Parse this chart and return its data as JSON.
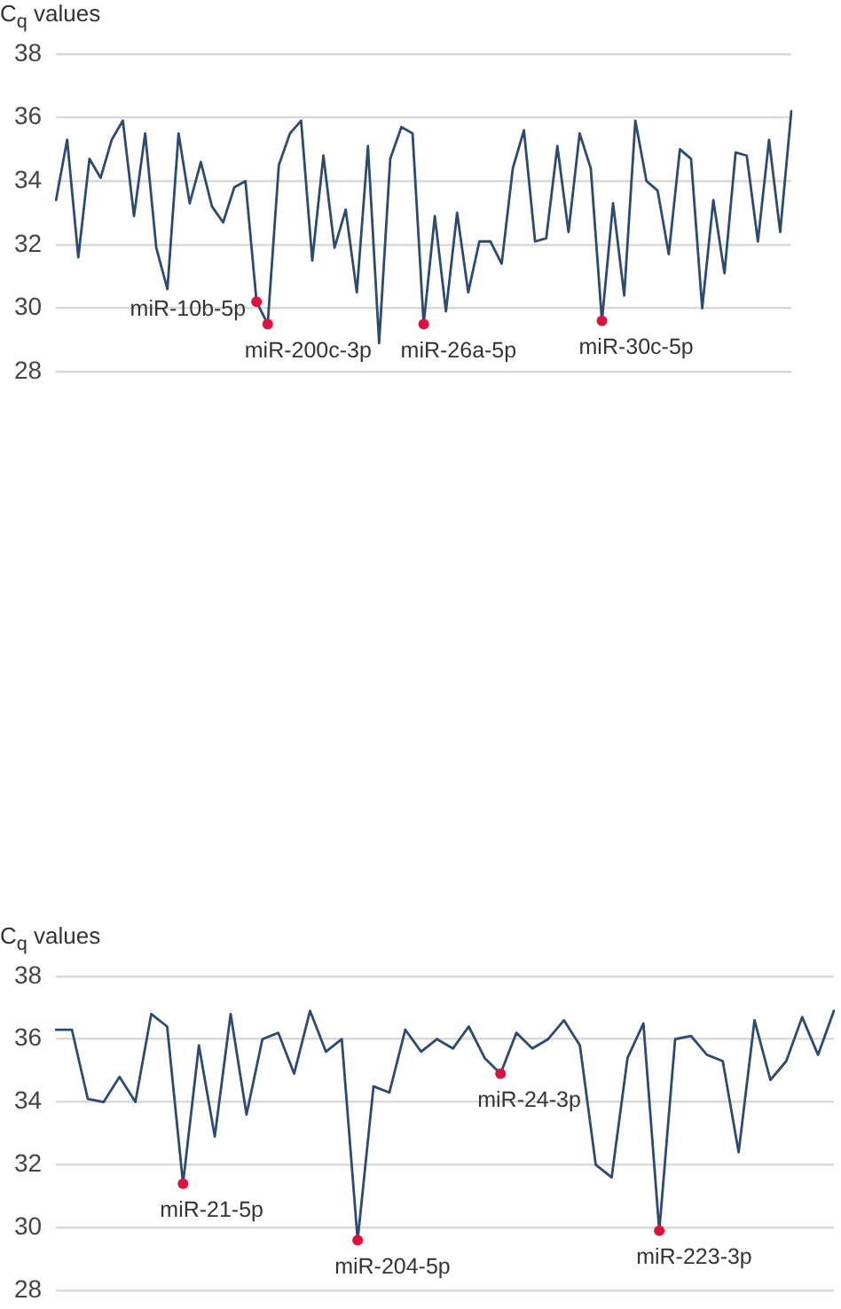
{
  "chart_data": [
    {
      "type": "line",
      "ylabel": "C$_{q}$ values",
      "ylim": [
        28,
        38
      ],
      "yticks": [
        28,
        30,
        32,
        34,
        36,
        38
      ],
      "grid": "y",
      "legend": false,
      "categories": [
        null,
        null,
        null,
        null,
        null,
        null,
        null,
        null,
        null,
        null,
        null,
        null,
        null,
        null,
        null,
        null,
        null,
        null,
        null,
        null,
        null,
        null,
        null,
        null,
        null,
        null,
        null,
        null,
        null,
        null,
        null,
        null,
        null,
        null,
        null,
        null,
        null,
        null,
        null,
        null,
        null,
        null,
        null,
        null,
        null,
        null,
        null,
        null,
        null,
        null,
        null,
        null,
        null,
        null,
        null,
        null,
        null,
        null,
        null,
        null,
        null,
        null,
        null,
        null,
        null,
        null,
        null
      ],
      "series": [
        {
          "marker": "none",
          "color": "#2d4a72",
          "values": [
            33.4,
            35.3,
            31.6,
            34.7,
            34.1,
            35.3,
            35.9,
            32.9,
            35.5,
            31.9,
            30.6,
            35.5,
            33.3,
            34.6,
            33.2,
            32.7,
            33.8,
            34.0,
            30.2,
            29.5,
            34.5,
            35.5,
            35.9,
            31.5,
            34.8,
            31.9,
            33.1,
            30.5,
            35.1,
            28.9,
            34.7,
            35.7,
            35.5,
            29.5,
            32.9,
            29.9,
            33.0,
            30.5,
            32.1,
            32.1,
            31.4,
            34.4,
            35.6,
            32.1,
            32.2,
            35.1,
            32.4,
            35.5,
            34.4,
            29.6,
            33.3,
            30.4,
            35.9,
            34.0,
            33.7,
            31.7,
            35.0,
            34.7,
            30.0,
            33.4,
            31.1,
            34.9,
            34.8,
            32.1,
            35.3,
            32.4,
            36.2
          ]
        },
        {
          "type": "scatter",
          "marker": "circle",
          "color": "#e0103c",
          "values": [
            null,
            null,
            null,
            null,
            null,
            null,
            null,
            null,
            null,
            null,
            null,
            null,
            null,
            null,
            null,
            null,
            null,
            null,
            30.2,
            29.5,
            null,
            null,
            null,
            null,
            null,
            null,
            null,
            null,
            null,
            null,
            null,
            null,
            null,
            29.5,
            null,
            null,
            null,
            null,
            null,
            null,
            null,
            null,
            null,
            null,
            null,
            null,
            null,
            null,
            null,
            29.6,
            null,
            null,
            null,
            null,
            null,
            null,
            null,
            null,
            null,
            null,
            null,
            null,
            null,
            null,
            null,
            null,
            null
          ],
          "value_labels": [
            null,
            null,
            null,
            null,
            null,
            null,
            null,
            null,
            null,
            null,
            null,
            null,
            null,
            null,
            null,
            null,
            null,
            null,
            "miR-10b-5p",
            "miR-200c-3p",
            null,
            null,
            null,
            null,
            null,
            null,
            null,
            null,
            null,
            null,
            null,
            null,
            null,
            "miR-26a-5p",
            null,
            null,
            null,
            null,
            null,
            null,
            null,
            null,
            null,
            null,
            null,
            null,
            null,
            null,
            null,
            "miR-30c-5p",
            null,
            null,
            null,
            null,
            null,
            null,
            null,
            null,
            null,
            null,
            null,
            null,
            null,
            null,
            null,
            null,
            null
          ]
        }
      ]
    },
    {
      "type": "line",
      "ylabel": "C$_{q}$ values",
      "ylim": [
        28,
        38
      ],
      "yticks": [
        28,
        30,
        32,
        34,
        36,
        38
      ],
      "grid": "y",
      "legend": false,
      "categories": [
        null,
        null,
        null,
        null,
        null,
        null,
        null,
        null,
        null,
        null,
        null,
        null,
        null,
        null,
        null,
        null,
        null,
        null,
        null,
        null,
        null,
        null,
        null,
        null,
        null,
        null,
        null,
        null,
        null,
        null,
        null,
        null,
        null,
        null,
        null,
        null,
        null,
        null,
        null,
        null,
        null,
        null,
        null,
        null,
        null,
        null,
        null,
        null,
        null,
        null
      ],
      "series": [
        {
          "marker": "none",
          "color": "#2d4a72",
          "values": [
            36.3,
            36.3,
            34.1,
            34.0,
            34.8,
            34.0,
            36.8,
            36.4,
            31.4,
            35.8,
            32.9,
            36.8,
            33.6,
            36.0,
            36.2,
            34.9,
            36.9,
            35.6,
            36.0,
            29.6,
            34.5,
            34.3,
            36.3,
            35.6,
            36.0,
            35.7,
            36.4,
            35.4,
            34.9,
            36.2,
            35.7,
            36.0,
            36.6,
            35.8,
            32.0,
            31.6,
            35.4,
            36.5,
            29.9,
            36.0,
            36.1,
            35.5,
            35.3,
            32.4,
            36.6,
            34.7,
            35.3,
            36.7,
            35.5,
            36.9
          ]
        },
        {
          "type": "scatter",
          "marker": "circle",
          "color": "#e0103c",
          "values": [
            null,
            null,
            null,
            null,
            null,
            null,
            null,
            null,
            31.4,
            null,
            null,
            null,
            null,
            null,
            null,
            null,
            null,
            null,
            null,
            29.6,
            null,
            null,
            null,
            null,
            null,
            null,
            null,
            null,
            34.9,
            null,
            null,
            null,
            null,
            null,
            null,
            null,
            null,
            null,
            29.9,
            null,
            null,
            null,
            null,
            null,
            null,
            null,
            null,
            null,
            null,
            null
          ],
          "value_labels": [
            null,
            null,
            null,
            null,
            null,
            null,
            null,
            null,
            "miR-21-5p",
            null,
            null,
            null,
            null,
            null,
            null,
            null,
            null,
            null,
            null,
            "miR-204-5p",
            null,
            null,
            null,
            null,
            null,
            null,
            null,
            null,
            "miR-24-3p",
            null,
            null,
            null,
            null,
            null,
            null,
            null,
            null,
            null,
            "miR-223-3p",
            null,
            null,
            null,
            null,
            null,
            null,
            null,
            null,
            null,
            null,
            null
          ]
        }
      ]
    }
  ]
}
